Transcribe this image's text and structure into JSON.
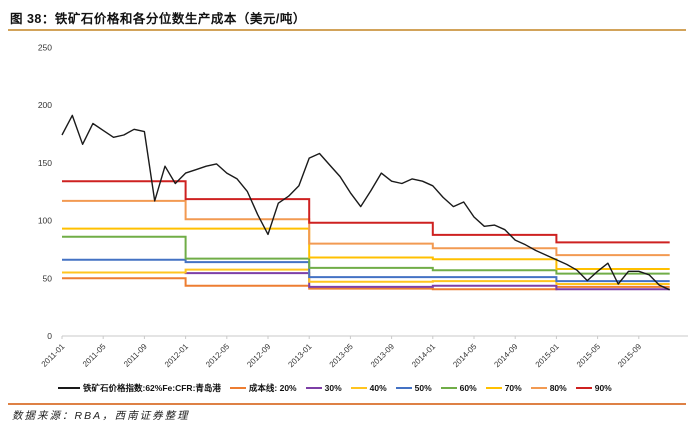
{
  "header": {
    "title": "图 38：铁矿石价格和各分位数生产成本（美元/吨）"
  },
  "footer": {
    "source": "数据来源：RBA，西南证券整理"
  },
  "colors": {
    "title_rule": "#d2a35a",
    "footer_rule": "#de8145",
    "axis": "#c9c9c9",
    "price_line": "#1a1a1a",
    "cost_20": "#ED7D31",
    "cost_30": "#7D3FA6",
    "cost_40": "#FFC41F",
    "cost_50": "#4472C4",
    "cost_60": "#70AD47",
    "cost_70": "#FFC000",
    "cost_80": "#F29A52",
    "cost_90": "#CE2120"
  },
  "legend": {
    "items": [
      {
        "label": "铁矿石价格指数:62%Fe:CFR:青岛港",
        "color": "#1a1a1a",
        "swatch_width": 22
      },
      {
        "label": "成本线: 20%",
        "color": "#ED7D31",
        "swatch_width": 16
      },
      {
        "label": "30%",
        "color": "#7D3FA6",
        "swatch_width": 16
      },
      {
        "label": "40%",
        "color": "#FFC41F",
        "swatch_width": 16
      },
      {
        "label": "50%",
        "color": "#4472C4",
        "swatch_width": 16
      },
      {
        "label": "60%",
        "color": "#70AD47",
        "swatch_width": 16
      },
      {
        "label": "70%",
        "color": "#FFC000",
        "swatch_width": 16
      },
      {
        "label": "80%",
        "color": "#F29A52",
        "swatch_width": 16
      },
      {
        "label": "90%",
        "color": "#CE2120",
        "swatch_width": 16
      }
    ]
  },
  "chart_data": {
    "type": "line",
    "title": "铁矿石价格和各分位数生产成本（美元/吨）",
    "xlabel": "",
    "ylabel": "",
    "ylim": [
      0,
      250
    ],
    "y_ticks": [
      0,
      50,
      100,
      150,
      200,
      250
    ],
    "grid": false,
    "legend_position": "bottom",
    "x_start": "2011-01",
    "x_end": "2015-12",
    "x_tick_labels": [
      "2011-01",
      "2011-05",
      "2011-09",
      "2012-01",
      "2012-05",
      "2012-09",
      "2013-01",
      "2013-05",
      "2013-09",
      "2014-01",
      "2014-05",
      "2014-09",
      "2015-01",
      "2015-05",
      "2015-09"
    ],
    "price_series": {
      "name": "铁矿石价格指数:62%Fe:CFR:青岛港",
      "color": "#1a1a1a",
      "frequency": "monthly",
      "monthly_values": [
        174,
        191,
        166,
        184,
        178,
        172,
        174,
        179,
        177,
        117,
        147,
        132,
        141,
        144,
        147,
        149,
        141,
        136,
        125,
        105,
        88,
        115,
        121,
        130,
        154,
        158,
        148,
        138,
        124,
        112,
        126,
        141,
        134,
        132,
        136,
        134,
        130,
        120,
        112,
        116,
        103,
        95,
        96,
        92,
        83,
        79,
        74,
        70,
        66,
        62,
        57,
        48,
        56,
        63,
        45,
        56,
        56,
        53,
        44,
        40
      ]
    },
    "cost_line_years": [
      "2011",
      "2012",
      "2013",
      "2014",
      "2015"
    ],
    "cost_lines": [
      {
        "percentile": "20%",
        "legend_label": "成本线: 20%",
        "color": "#ED7D31",
        "yearly_values": [
          50,
          43.5,
          41,
          40.5,
          42.5
        ]
      },
      {
        "percentile": "30%",
        "legend_label": "30%",
        "color": "#7D3FA6",
        "yearly_values": [
          55,
          54.5,
          42.5,
          43.5,
          40.5
        ]
      },
      {
        "percentile": "40%",
        "legend_label": "40%",
        "color": "#FFC41F",
        "yearly_values": [
          55,
          57.5,
          47,
          47.5,
          45
        ]
      },
      {
        "percentile": "50%",
        "legend_label": "50%",
        "color": "#4472C4",
        "yearly_values": [
          66,
          64,
          51,
          51,
          47.5
        ]
      },
      {
        "percentile": "60%",
        "legend_label": "60%",
        "color": "#70AD47",
        "yearly_values": [
          86,
          67,
          59,
          57,
          54
        ]
      },
      {
        "percentile": "70%",
        "legend_label": "70%",
        "color": "#FFC000",
        "yearly_values": [
          93,
          93,
          68,
          66.5,
          58
        ]
      },
      {
        "percentile": "80%",
        "legend_label": "80%",
        "color": "#F29A52",
        "yearly_values": [
          117,
          101,
          80,
          76,
          70
        ]
      },
      {
        "percentile": "90%",
        "legend_label": "90%",
        "color": "#CE2120",
        "yearly_values": [
          134,
          118.5,
          98,
          87.5,
          81
        ]
      }
    ]
  }
}
